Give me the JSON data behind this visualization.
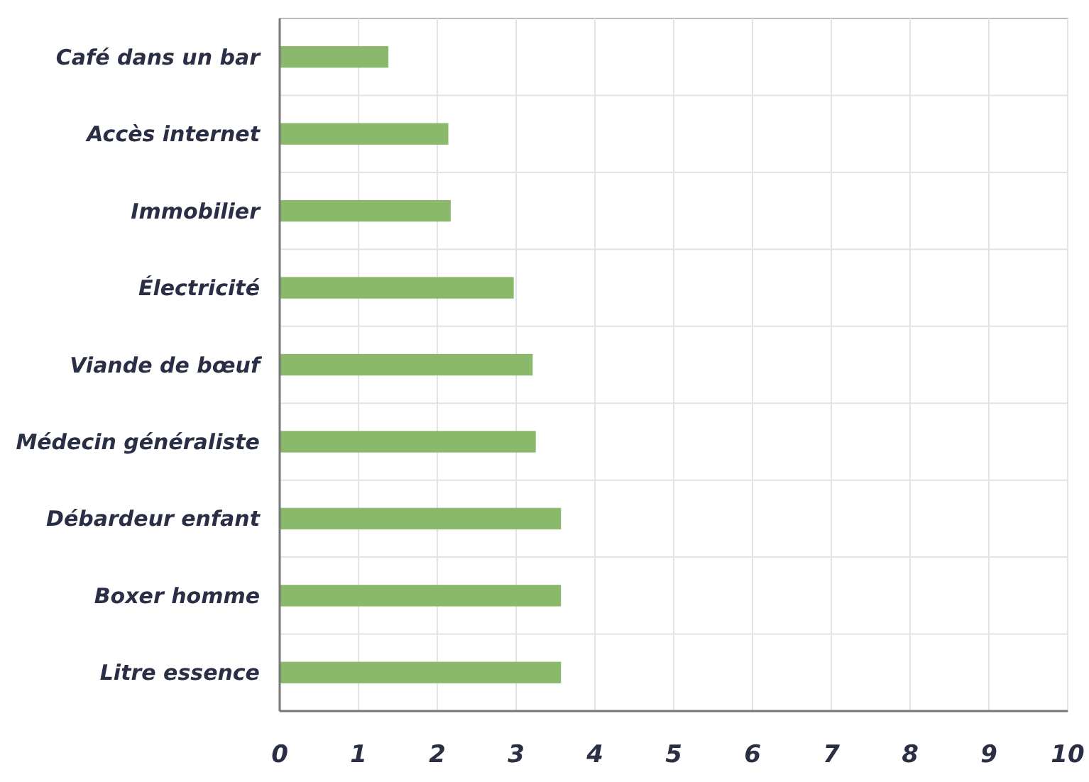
{
  "chart_data": {
    "type": "bar",
    "orientation": "horizontal",
    "categories": [
      "Café dans un bar",
      "Accès internet",
      "Immobilier",
      "Électricité",
      "Viande de bœuf",
      "Médecin généraliste",
      "Débardeur enfant",
      "Boxer homme",
      "Litre essence"
    ],
    "values": [
      1.38,
      2.14,
      2.17,
      2.97,
      3.21,
      3.25,
      3.57,
      3.57,
      3.57
    ],
    "color": "#8bb96b",
    "xlim": [
      0,
      10
    ],
    "xticks": [
      0,
      1,
      2,
      3,
      4,
      5,
      6,
      7,
      8,
      9,
      10
    ],
    "grid": true
  }
}
